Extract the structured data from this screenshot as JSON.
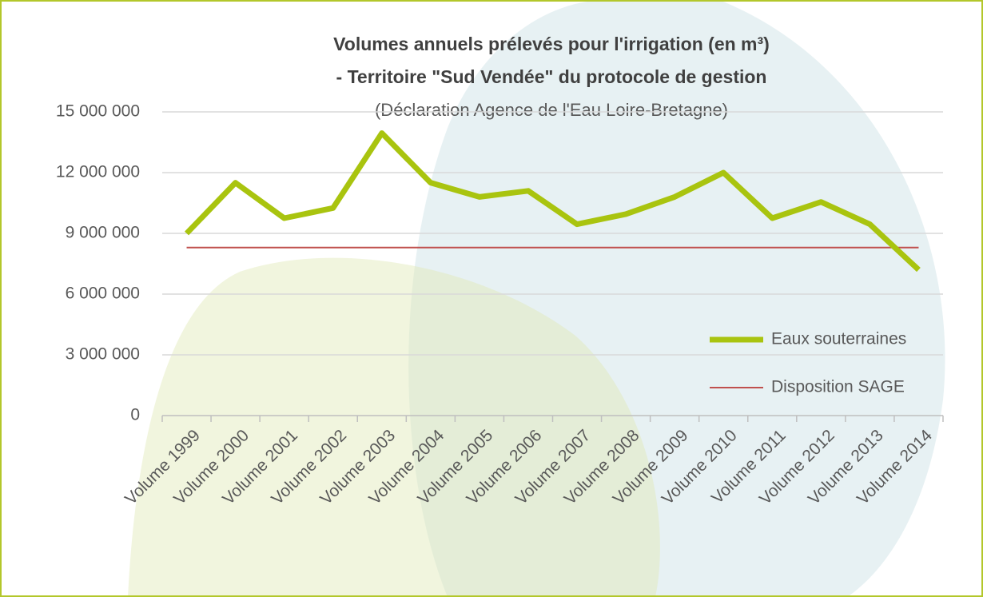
{
  "chart_data": {
    "type": "line",
    "title": [
      "Volumes annuels  prélevés pour l'irrigation (en m³)",
      "- Territoire \"Sud Vendée\" du protocole de gestion"
    ],
    "subtitle": "(Déclaration Agence de l'Eau Loire-Bretagne)",
    "categories": [
      "Volume 1999",
      "Volume 2000",
      "Volume 2001",
      "Volume 2002",
      "Volume 2003",
      "Volume 2004",
      "Volume 2005",
      "Volume 2006",
      "Volume 2007",
      "Volume 2008",
      "Volume 2009",
      "Volume 2010",
      "Volume 2011",
      "Volume 2012",
      "Volume 2013",
      "Volume 2014"
    ],
    "series": [
      {
        "name": "Eaux souterraines",
        "color": "#a9c40f",
        "values": [
          9000000,
          11500000,
          9750000,
          10250000,
          13950000,
          11500000,
          10800000,
          11100000,
          9450000,
          9950000,
          10800000,
          12000000,
          9750000,
          10550000,
          9450000,
          7200000
        ]
      },
      {
        "name": "Disposition SAGE",
        "color": "#c0504d",
        "values": [
          8300000,
          8300000,
          8300000,
          8300000,
          8300000,
          8300000,
          8300000,
          8300000,
          8300000,
          8300000,
          8300000,
          8300000,
          8300000,
          8300000,
          8300000,
          8300000
        ]
      }
    ],
    "ylim": [
      0,
      15000000
    ],
    "yticks": [
      0,
      {
        "value": 3000000,
        "label": "3 000 000"
      },
      {
        "value": 6000000,
        "label": "6 000 000"
      },
      {
        "value": 9000000,
        "label": "9 000 000"
      },
      {
        "value": 12000000,
        "label": "12 000 000"
      },
      {
        "value": 15000000,
        "label": "15 000 000"
      }
    ],
    "grid": true,
    "legend": "lower right"
  }
}
